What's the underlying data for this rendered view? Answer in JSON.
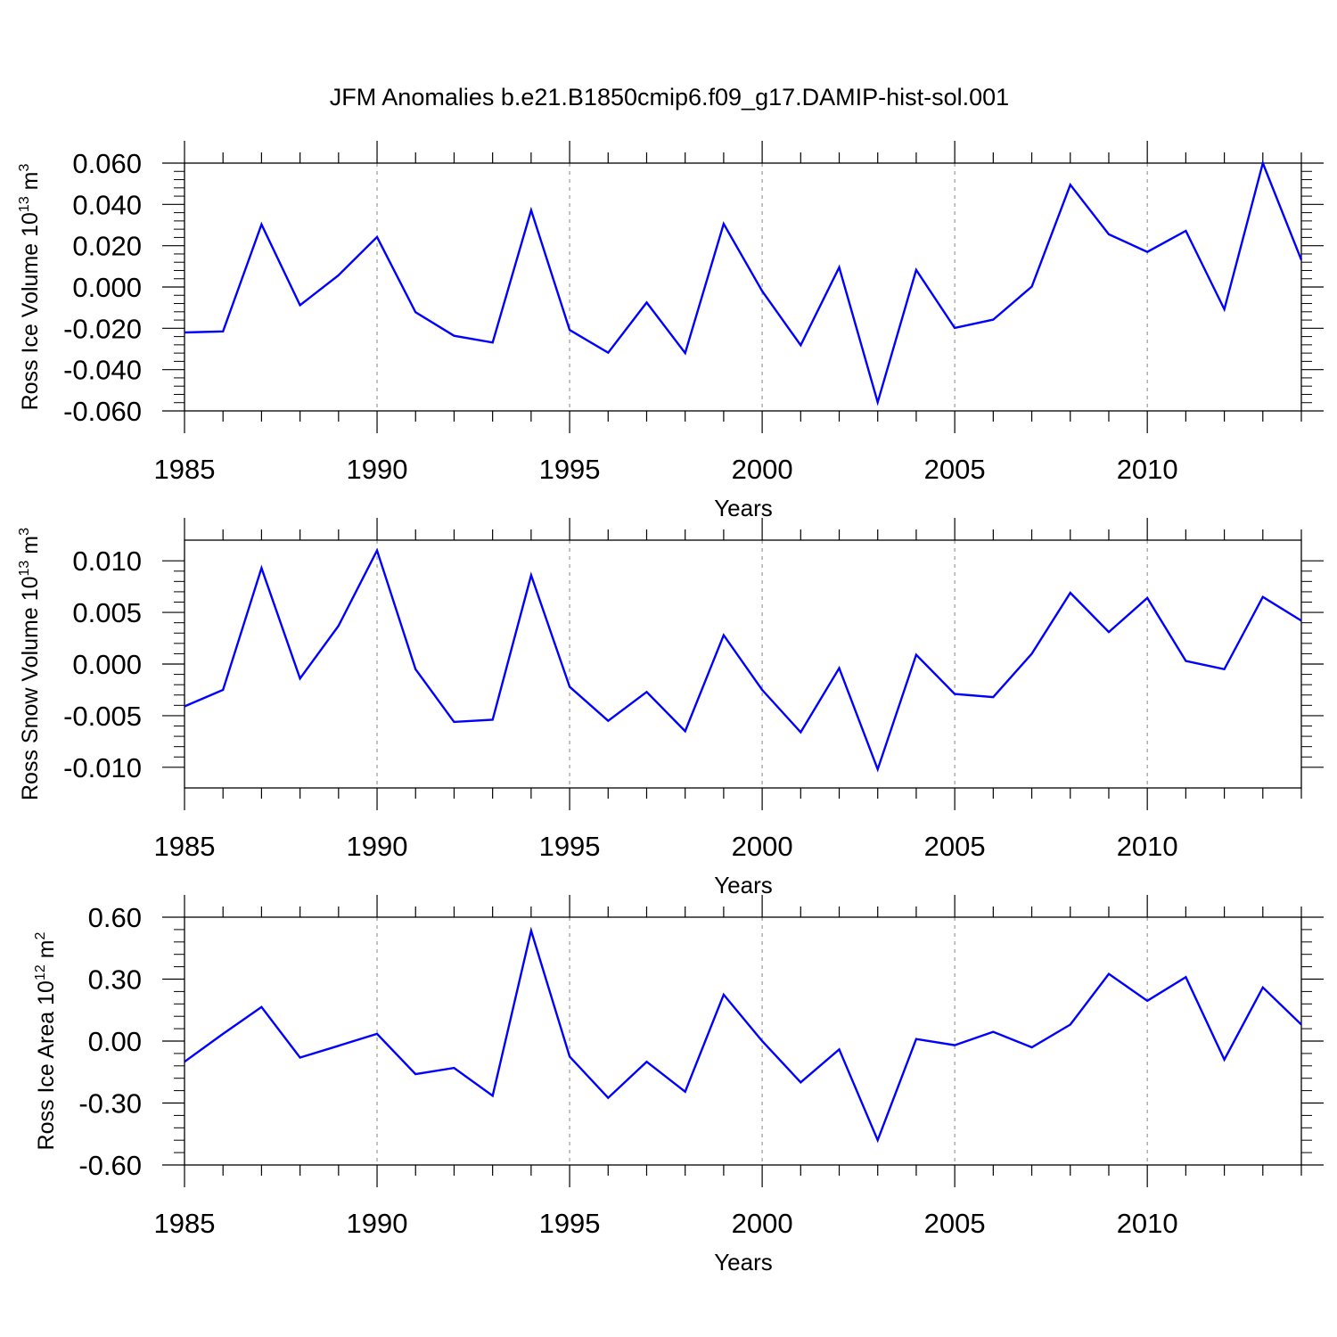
{
  "figure_title": "JFM Anomalies b.e21.B1850cmip6.f09_g17.DAMIP-hist-sol.001",
  "colors": {
    "series": "#0000ff",
    "axis": "#000000",
    "grid": "#9a9a9a"
  },
  "chart_data": [
    {
      "type": "line",
      "title": "JFM Anomalies b.e21.B1850cmip6.f09_g17.DAMIP-hist-sol.001",
      "ylabel": {
        "text": "Ross Ice Volume 10",
        "exp": "13",
        "unit": " m",
        "unit_exp": "3"
      },
      "xlabel": "Years",
      "xlim": [
        1985,
        2014
      ],
      "ylim": [
        -0.06,
        0.06
      ],
      "xticks": [
        1985,
        1990,
        1995,
        2000,
        2005,
        2010
      ],
      "xtick_labels": [
        "1985",
        "1990",
        "1995",
        "2000",
        "2005",
        "2010"
      ],
      "yticks": [
        -0.06,
        -0.04,
        -0.02,
        0.0,
        0.02,
        0.04,
        0.06
      ],
      "ytick_labels": [
        "-0.060",
        "-0.040",
        "-0.020",
        "0.000",
        "0.020",
        "0.040",
        "0.060"
      ],
      "grid": "vertical dashed at major x ticks",
      "x": [
        1985,
        1986,
        1987,
        1988,
        1989,
        1990,
        1991,
        1992,
        1993,
        1994,
        1995,
        1996,
        1997,
        1998,
        1999,
        2000,
        2001,
        2002,
        2003,
        2004,
        2005,
        2006,
        2007,
        2008,
        2009,
        2010,
        2011,
        2012,
        2013,
        2014
      ],
      "y": [
        -0.022,
        -0.0215,
        0.0303,
        -0.0088,
        0.0057,
        0.0242,
        -0.0122,
        -0.0236,
        -0.0269,
        0.0372,
        -0.0208,
        -0.0318,
        -0.0075,
        -0.032,
        0.0306,
        -0.002,
        -0.0282,
        0.0095,
        -0.0558,
        0.0083,
        -0.0198,
        -0.0158,
        0.0002,
        0.0495,
        0.0255,
        0.017,
        0.0272,
        -0.0108,
        0.06,
        0.0131
      ]
    },
    {
      "type": "line",
      "ylabel": {
        "text": "Ross Snow Volume 10",
        "exp": "13",
        "unit": " m",
        "unit_exp": "3"
      },
      "xlabel": "Years",
      "xlim": [
        1985,
        2014
      ],
      "ylim": [
        -0.012,
        0.012
      ],
      "xticks": [
        1985,
        1990,
        1995,
        2000,
        2005,
        2010
      ],
      "xtick_labels": [
        "1985",
        "1990",
        "1995",
        "2000",
        "2005",
        "2010"
      ],
      "yticks": [
        -0.01,
        -0.005,
        0.0,
        0.005,
        0.01
      ],
      "ytick_labels": [
        "-0.010",
        "-0.005",
        "0.000",
        "0.005",
        "0.010"
      ],
      "grid": "vertical dashed at major x ticks",
      "x": [
        1985,
        1986,
        1987,
        1988,
        1989,
        1990,
        1991,
        1992,
        1993,
        1994,
        1995,
        1996,
        1997,
        1998,
        1999,
        2000,
        2001,
        2002,
        2003,
        2004,
        2005,
        2006,
        2007,
        2008,
        2009,
        2010,
        2011,
        2012,
        2013,
        2014
      ],
      "y": [
        -0.0041,
        -0.0025,
        0.0093,
        -0.0014,
        0.0037,
        0.011,
        -0.0005,
        -0.0056,
        -0.0054,
        0.0086,
        -0.0022,
        -0.0055,
        -0.0027,
        -0.0065,
        0.0028,
        -0.0025,
        -0.0066,
        -0.0004,
        -0.0102,
        0.0009,
        -0.0029,
        -0.0032,
        0.001,
        0.0069,
        0.0031,
        0.0064,
        0.0003,
        -0.0005,
        0.0065,
        0.0042
      ]
    },
    {
      "type": "line",
      "ylabel": {
        "text": "Ross Ice Area 10",
        "exp": "12",
        "unit": " m",
        "unit_exp": "2"
      },
      "xlabel": "Years",
      "xlim": [
        1985,
        2014
      ],
      "ylim": [
        -0.6,
        0.6
      ],
      "xticks": [
        1985,
        1990,
        1995,
        2000,
        2005,
        2010
      ],
      "xtick_labels": [
        "1985",
        "1990",
        "1995",
        "2000",
        "2005",
        "2010"
      ],
      "yticks": [
        -0.6,
        -0.3,
        0.0,
        0.3,
        0.6
      ],
      "ytick_labels": [
        "-0.60",
        "-0.30",
        "0.00",
        "0.30",
        "0.60"
      ],
      "grid": "vertical dashed at major x ticks",
      "x": [
        1985,
        1986,
        1987,
        1988,
        1989,
        1990,
        1991,
        1992,
        1993,
        1994,
        1995,
        1996,
        1997,
        1998,
        1999,
        2000,
        2001,
        2002,
        2003,
        2004,
        2005,
        2006,
        2007,
        2008,
        2009,
        2010,
        2011,
        2012,
        2013,
        2014
      ],
      "y": [
        -0.1,
        0.035,
        0.165,
        -0.08,
        -0.023,
        0.035,
        -0.16,
        -0.13,
        -0.265,
        0.535,
        -0.075,
        -0.275,
        -0.1,
        -0.245,
        0.225,
        0.0,
        -0.2,
        -0.04,
        -0.48,
        0.01,
        -0.02,
        0.045,
        -0.03,
        0.08,
        0.325,
        0.195,
        0.31,
        -0.09,
        0.26,
        0.08
      ]
    }
  ]
}
